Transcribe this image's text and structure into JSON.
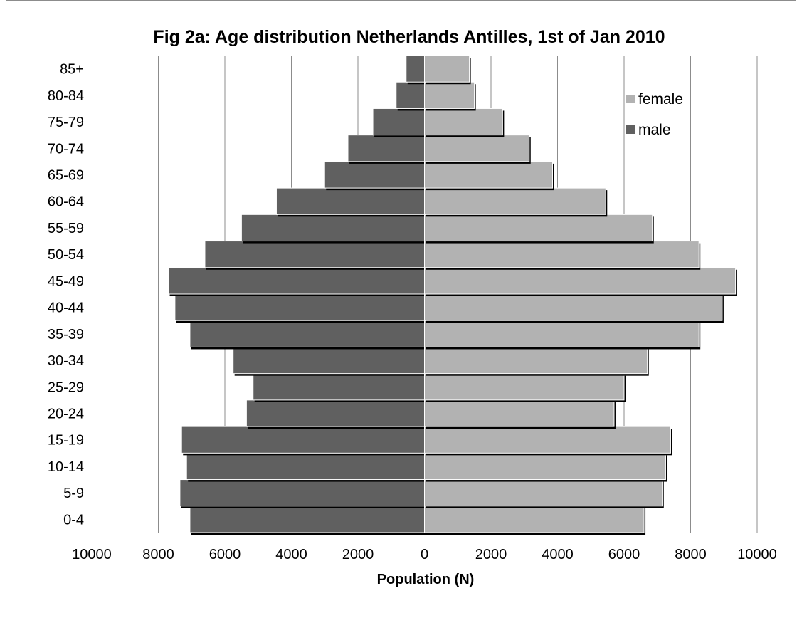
{
  "chart_data": {
    "type": "bar",
    "orientation": "horizontal",
    "title": "Fig 2a: Age distribution Netherlands Antilles, 1st of Jan 2010",
    "xlabel": "Population (N)",
    "ylabel": "",
    "xlim": [
      -10000,
      10000
    ],
    "x_tick_labels": [
      "10000",
      "8000",
      "6000",
      "4000",
      "2000",
      "0",
      "2000",
      "4000",
      "6000",
      "8000",
      "10000"
    ],
    "grid": true,
    "legend_position": "top-right",
    "categories": [
      "0-4",
      "5-9",
      "10-14",
      "15-19",
      "20-24",
      "25-29",
      "30-34",
      "35-39",
      "40-44",
      "45-49",
      "50-54",
      "55-59",
      "60-64",
      "65-69",
      "70-74",
      "75-79",
      "80-84",
      "85+"
    ],
    "series": [
      {
        "name": "female",
        "color": "#b2b2b2",
        "values": [
          6600,
          7150,
          7250,
          7400,
          5700,
          6000,
          6700,
          8250,
          8950,
          9350,
          8250,
          6850,
          5450,
          3850,
          3150,
          2350,
          1500,
          1350
        ]
      },
      {
        "name": "male",
        "color": "#606060",
        "values": [
          7050,
          7350,
          7150,
          7300,
          5350,
          5150,
          5750,
          7050,
          7500,
          7700,
          6600,
          5500,
          4450,
          3000,
          2300,
          1550,
          850,
          550
        ]
      }
    ]
  }
}
